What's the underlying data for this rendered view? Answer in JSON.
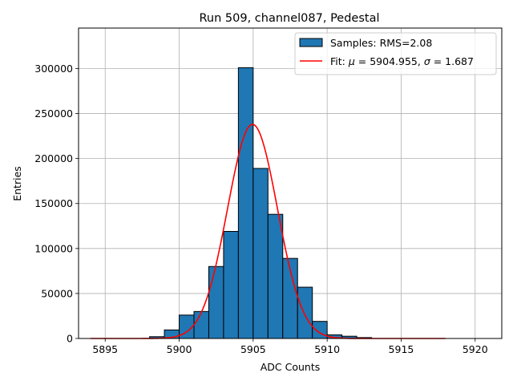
{
  "chart_data": {
    "type": "bar",
    "title": "Run 509, channel087, Pedestal",
    "xlabel": "ADC Counts",
    "ylabel": "Entries",
    "xlim": [
      5893.2,
      5921.8
    ],
    "ylim": [
      0,
      345000
    ],
    "grid": true,
    "legend_position": "top-right",
    "x_ticks": [
      {
        "value": 5895,
        "label": "5895"
      },
      {
        "value": 5900,
        "label": "5900"
      },
      {
        "value": 5905,
        "label": "5905"
      },
      {
        "value": 5910,
        "label": "5910"
      },
      {
        "value": 5915,
        "label": "5915"
      },
      {
        "value": 5920,
        "label": "5920"
      }
    ],
    "y_ticks": [
      {
        "value": 0,
        "label": "0"
      },
      {
        "value": 50000,
        "label": "50000"
      },
      {
        "value": 100000,
        "label": "100000"
      },
      {
        "value": 150000,
        "label": "150000"
      },
      {
        "value": 200000,
        "label": "200000"
      },
      {
        "value": 250000,
        "label": "250000"
      },
      {
        "value": 300000,
        "label": "300000"
      }
    ],
    "histogram": {
      "name": "Samples: RMS=2.08",
      "color": "#1f77b4",
      "edge_color": "#000000",
      "bins": [
        {
          "lo": 5898.0,
          "hi": 5899.0,
          "count": 2000
        },
        {
          "lo": 5899.0,
          "hi": 5900.0,
          "count": 9500
        },
        {
          "lo": 5900.0,
          "hi": 5901.0,
          "count": 26000
        },
        {
          "lo": 5901.0,
          "hi": 5902.0,
          "count": 30000
        },
        {
          "lo": 5902.0,
          "hi": 5903.0,
          "count": 80000
        },
        {
          "lo": 5903.0,
          "hi": 5904.0,
          "count": 119000
        },
        {
          "lo": 5904.0,
          "hi": 5905.0,
          "count": 301000
        },
        {
          "lo": 5905.0,
          "hi": 5906.0,
          "count": 189000
        },
        {
          "lo": 5906.0,
          "hi": 5907.0,
          "count": 138000
        },
        {
          "lo": 5907.0,
          "hi": 5908.0,
          "count": 89000
        },
        {
          "lo": 5908.0,
          "hi": 5909.0,
          "count": 57000
        },
        {
          "lo": 5909.0,
          "hi": 5910.0,
          "count": 19000
        },
        {
          "lo": 5910.0,
          "hi": 5911.0,
          "count": 4000
        },
        {
          "lo": 5911.0,
          "hi": 5912.0,
          "count": 2500
        },
        {
          "lo": 5912.0,
          "hi": 5913.0,
          "count": 1000
        }
      ]
    },
    "fit": {
      "name": "Fit: μ = 5904.955, σ = 1.687",
      "legend_prefix": "Fit: ",
      "mu_symbol": "μ",
      "mu_text": " = 5904.955, ",
      "sigma_symbol": "σ",
      "sigma_text": " = 1.687",
      "color": "#ff0000",
      "mu": 5904.955,
      "sigma": 1.687,
      "amplitude": 238000,
      "x_range": [
        5894.0,
        5918.0
      ]
    }
  }
}
